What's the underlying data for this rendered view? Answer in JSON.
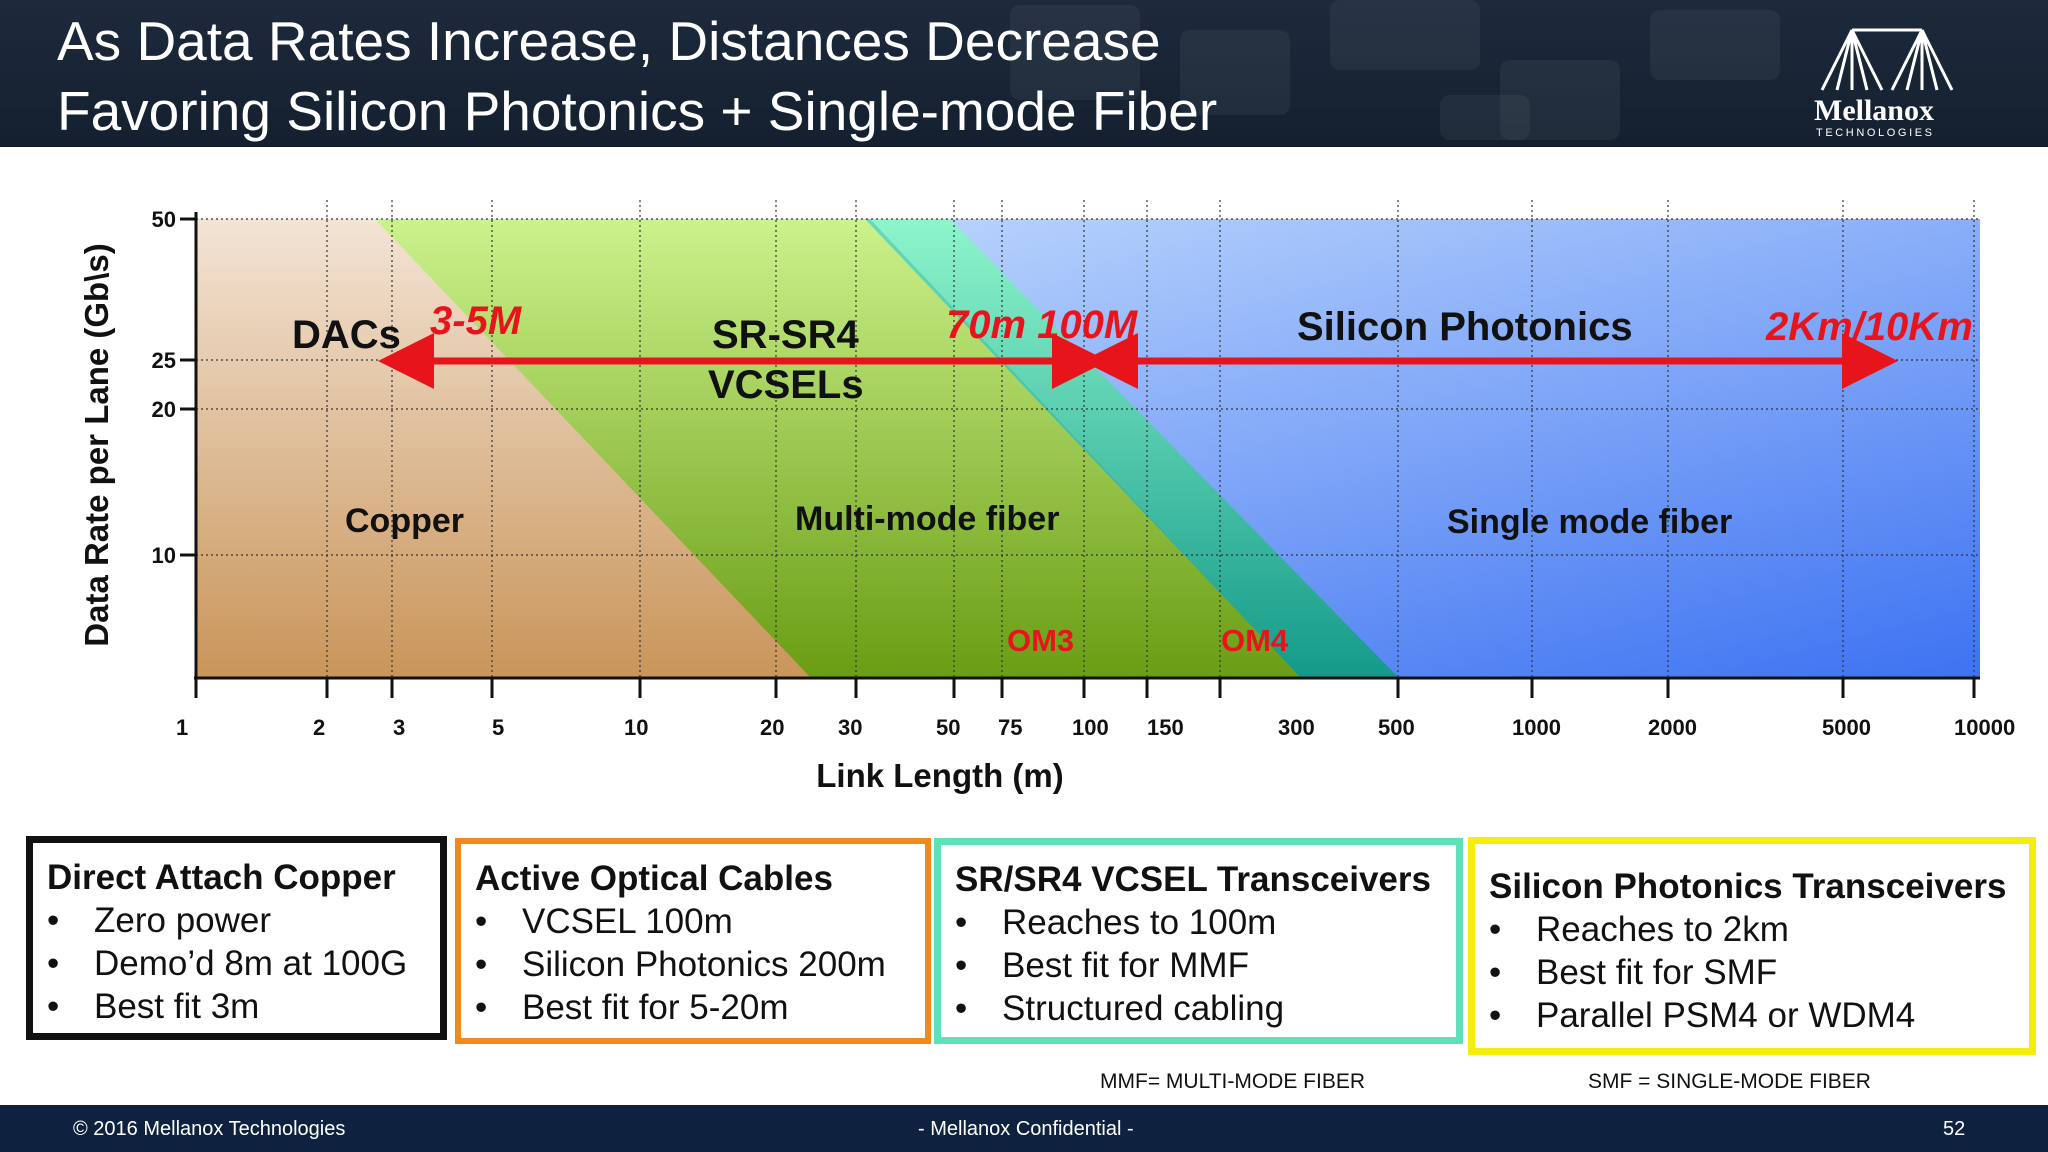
{
  "slide": {
    "title_line1": "As Data Rates Increase, Distances Decrease",
    "title_line2": "Favoring Silicon Photonics + Single-mode Fiber",
    "logo_text": "Mellanox",
    "logo_subtext": "TECHNOLOGIES"
  },
  "chart_data": {
    "type": "area",
    "title": "",
    "xlabel": "Link Length (m)",
    "ylabel": "Data Rate per Lane (Gb\\s)",
    "x_scale": "log",
    "xlim": [
      1,
      10000
    ],
    "x_ticks": [
      1,
      2,
      3,
      5,
      10,
      20,
      30,
      50,
      75,
      100,
      150,
      300,
      500,
      1000,
      2000,
      5000,
      10000
    ],
    "y_ticks": [
      50,
      25,
      20,
      10
    ],
    "grid": true,
    "regions": [
      {
        "name": "Copper",
        "color": "#c9955a"
      },
      {
        "name": "Multi-mode fiber",
        "color": "#73a51e"
      },
      {
        "name": "OM3",
        "color": "#2fbf8f"
      },
      {
        "name": "OM4",
        "color": "#1aa8a0"
      },
      {
        "name": "Single mode fiber",
        "color": "#4a86f0"
      }
    ],
    "labels": {
      "dacs": "DACs",
      "sr": "SR-SR4",
      "vcsels": "VCSELs",
      "sip": "Silicon Photonics",
      "copper": "Copper",
      "mmf": "Multi-mode fiber",
      "smf": "Single mode fiber",
      "om3": "OM3",
      "om4": "OM4",
      "range_dac": "3-5M",
      "range_vcsel": "70m 100M",
      "range_sip": "2Km/10Km"
    },
    "arrows": [
      {
        "from": 3,
        "to": 100,
        "label": "3-5M / 70m 100M"
      },
      {
        "from": 100,
        "to": 5000,
        "label": "2Km/10Km"
      }
    ],
    "accent_color": "#e8141b"
  },
  "boxes": [
    {
      "title": "Direct Attach Copper",
      "items": [
        "Zero power",
        "Demo’d 8m at 100G",
        "Best fit 3m"
      ],
      "color": "#111111"
    },
    {
      "title": "Active Optical Cables",
      "items": [
        "VCSEL 100m",
        "Silicon Photonics 200m",
        "Best fit for 5-20m"
      ],
      "color": "#f08a1c"
    },
    {
      "title": "SR/SR4 VCSEL Transceivers",
      "items": [
        "Reaches to 100m",
        "Best fit for MMF",
        "Structured cabling"
      ],
      "color": "#5ee0b8"
    },
    {
      "title": "Silicon Photonics Transceivers",
      "items": [
        "Reaches to 2km",
        "Best fit for SMF",
        "Parallel PSM4 or WDM4"
      ],
      "color": "#f5ee0c"
    }
  ],
  "notes": {
    "mmf": "MMF= MULTI-MODE FIBER",
    "smf": "SMF = SINGLE-MODE FIBER"
  },
  "footer": {
    "copyright": "© 2016 Mellanox Technologies",
    "confidential": "- Mellanox Confidential -",
    "page": "52"
  }
}
